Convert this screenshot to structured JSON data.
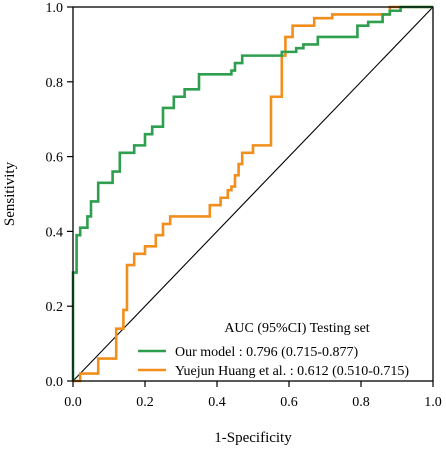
{
  "chart_data": {
    "type": "line",
    "title": "",
    "xlabel": "1-Specificity",
    "ylabel": "Sensitivity",
    "xlim": [
      0,
      1
    ],
    "ylim": [
      0,
      1
    ],
    "xticks": [
      "0.0",
      "0.2",
      "0.4",
      "0.6",
      "0.8",
      "1.0"
    ],
    "yticks": [
      "0.0",
      "0.2",
      "0.4",
      "0.6",
      "0.8",
      "1.0"
    ],
    "grid": false,
    "legend_placement": "bottom-right",
    "legend_title": "AUC (95%CI) Testing set",
    "series": [
      {
        "name": "Our model : 0.796 (0.715-0.877)",
        "color": "#2e9e4f",
        "x": [
          0,
          0,
          0.01,
          0.01,
          0.02,
          0.02,
          0.04,
          0.04,
          0.05,
          0.05,
          0.07,
          0.07,
          0.11,
          0.11,
          0.13,
          0.13,
          0.17,
          0.17,
          0.2,
          0.2,
          0.22,
          0.22,
          0.25,
          0.25,
          0.28,
          0.28,
          0.31,
          0.31,
          0.35,
          0.35,
          0.44,
          0.44,
          0.45,
          0.45,
          0.47,
          0.47,
          0.58,
          0.58,
          0.62,
          0.62,
          0.64,
          0.64,
          0.68,
          0.68,
          0.79,
          0.79,
          0.82,
          0.82,
          0.86,
          0.86,
          0.88,
          0.88,
          0.91,
          0.91,
          0.95,
          0.95,
          1
        ],
        "y": [
          0,
          0.29,
          0.29,
          0.39,
          0.39,
          0.41,
          0.41,
          0.44,
          0.44,
          0.48,
          0.48,
          0.53,
          0.53,
          0.56,
          0.56,
          0.61,
          0.61,
          0.63,
          0.63,
          0.66,
          0.66,
          0.68,
          0.68,
          0.73,
          0.73,
          0.76,
          0.76,
          0.78,
          0.78,
          0.82,
          0.82,
          0.83,
          0.83,
          0.85,
          0.85,
          0.87,
          0.87,
          0.88,
          0.88,
          0.89,
          0.89,
          0.9,
          0.9,
          0.92,
          0.92,
          0.95,
          0.95,
          0.96,
          0.96,
          0.98,
          0.98,
          0.99,
          0.99,
          1,
          1,
          1,
          1
        ]
      },
      {
        "name": "Yuejun Huang et al. : 0.612 (0.510-0.715)",
        "color": "#f28e1c",
        "x": [
          0,
          0.02,
          0.02,
          0.07,
          0.07,
          0.12,
          0.12,
          0.14,
          0.14,
          0.15,
          0.15,
          0.17,
          0.17,
          0.2,
          0.2,
          0.23,
          0.23,
          0.25,
          0.25,
          0.27,
          0.27,
          0.38,
          0.38,
          0.41,
          0.41,
          0.43,
          0.43,
          0.44,
          0.44,
          0.45,
          0.45,
          0.46,
          0.46,
          0.47,
          0.47,
          0.5,
          0.5,
          0.55,
          0.55,
          0.58,
          0.58,
          0.59,
          0.59,
          0.61,
          0.61,
          0.67,
          0.67,
          0.72,
          0.72,
          0.8,
          0.8,
          0.84,
          0.84,
          0.88,
          0.88,
          0.92,
          0.92,
          1
        ],
        "y": [
          0,
          0,
          0.02,
          0.02,
          0.06,
          0.06,
          0.14,
          0.14,
          0.19,
          0.19,
          0.31,
          0.31,
          0.34,
          0.34,
          0.36,
          0.36,
          0.39,
          0.39,
          0.42,
          0.42,
          0.44,
          0.44,
          0.47,
          0.47,
          0.49,
          0.49,
          0.51,
          0.51,
          0.52,
          0.52,
          0.55,
          0.55,
          0.58,
          0.58,
          0.61,
          0.61,
          0.63,
          0.63,
          0.76,
          0.76,
          0.87,
          0.87,
          0.92,
          0.92,
          0.95,
          0.95,
          0.97,
          0.97,
          0.98,
          0.98,
          0.98,
          0.98,
          0.98,
          0.98,
          1,
          1,
          1,
          1
        ]
      }
    ],
    "reference_line": {
      "x": [
        0,
        1
      ],
      "y": [
        0,
        1
      ],
      "color": "#000000"
    }
  }
}
